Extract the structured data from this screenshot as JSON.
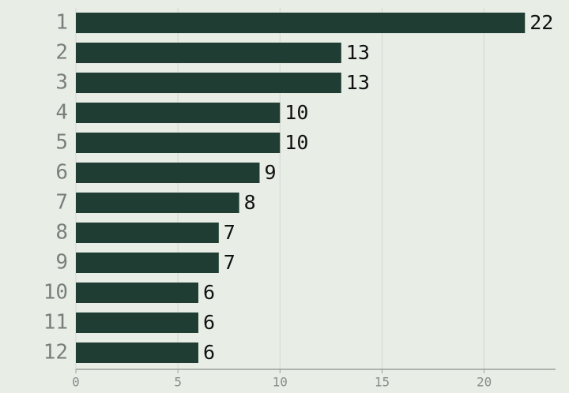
{
  "chart_data": {
    "type": "bar",
    "orientation": "horizontal",
    "categories": [
      "1",
      "2",
      "3",
      "4",
      "5",
      "6",
      "7",
      "8",
      "9",
      "10",
      "11",
      "12"
    ],
    "values": [
      22,
      13,
      13,
      10,
      10,
      9,
      8,
      7,
      7,
      6,
      6,
      6
    ],
    "color": "#1f3d33",
    "xlim": [
      0,
      23.5
    ],
    "xticks": [
      0,
      5,
      10,
      15,
      20
    ],
    "grid": true
  }
}
